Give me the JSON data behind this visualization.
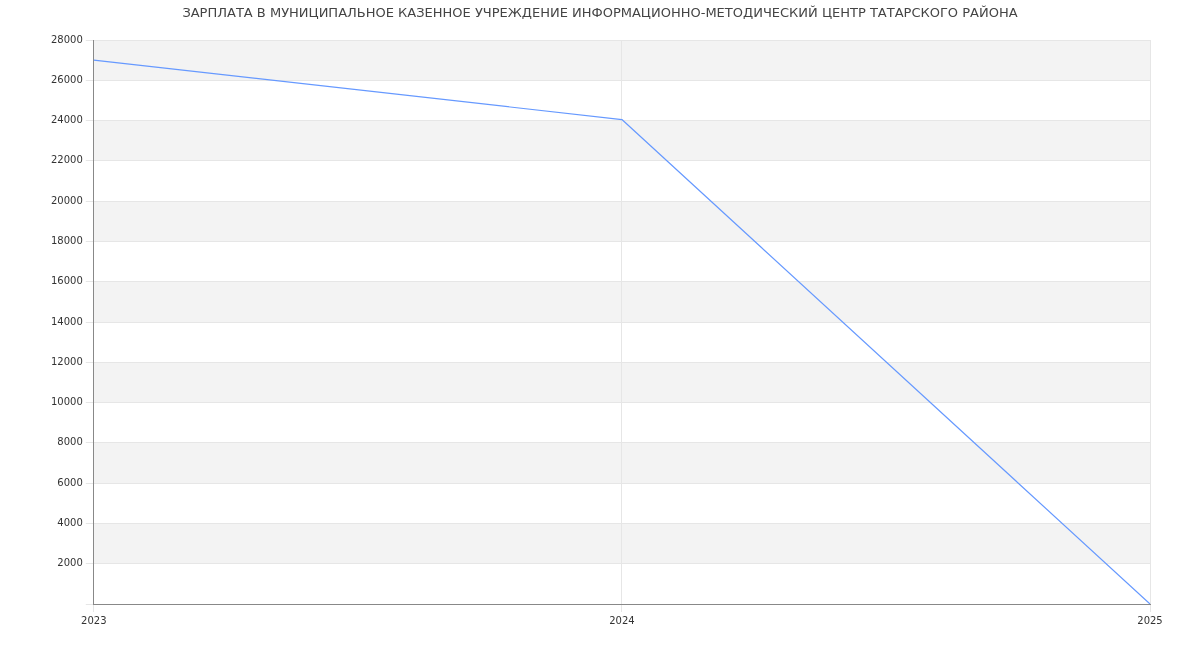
{
  "chart_data": {
    "type": "line",
    "title": "ЗАРПЛАТА В МУНИЦИПАЛЬНОЕ КАЗЕННОЕ УЧРЕЖДЕНИЕ ИНФОРМАЦИОННО-МЕТОДИЧЕСКИЙ ЦЕНТР ТАТАРСКОГО РАЙОНА",
    "categories": [
      "2023",
      "2024",
      "2025"
    ],
    "series": [
      {
        "color": "#6699ff",
        "values": [
          27000,
          24050,
          0
        ]
      }
    ],
    "ylim": [
      0,
      28000
    ],
    "yticks": [
      {
        "value": 0,
        "label": null
      },
      2000,
      4000,
      6000,
      8000,
      10000,
      12000,
      14000,
      16000,
      18000,
      20000,
      22000,
      24000,
      26000,
      28000
    ],
    "grid": true,
    "legend": false,
    "marker": "none",
    "line_style": "solid"
  }
}
